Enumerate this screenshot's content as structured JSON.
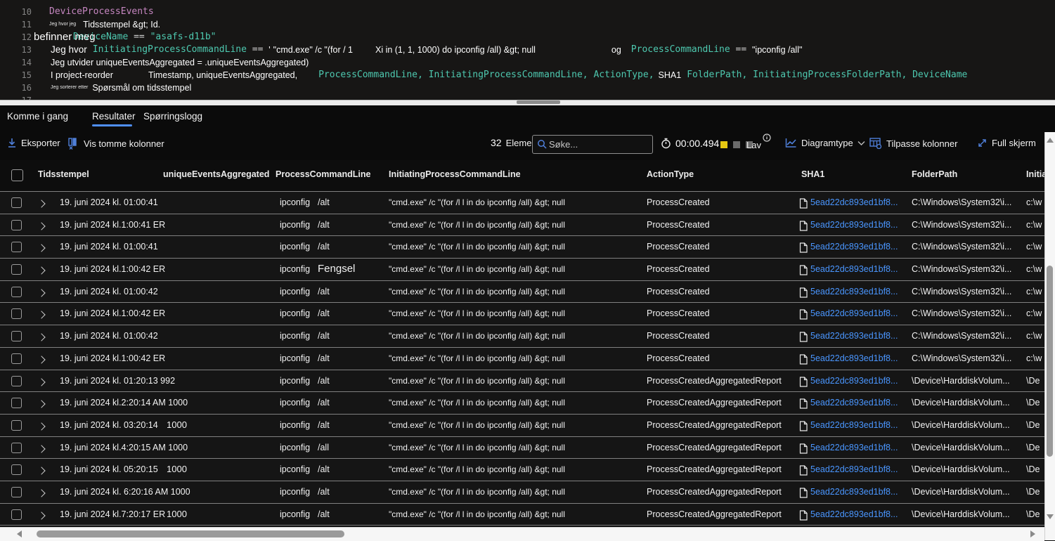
{
  "editor": {
    "overlay_text": "befinner meg",
    "lines": [
      {
        "num": "10",
        "tokens": [
          {
            "text": "DeviceProcessEvents",
            "cls": "purple",
            "ml": 25
          }
        ]
      },
      {
        "num": "11",
        "tokens": [
          {
            "text": "Jeg hvor jeg",
            "cls": "wxs",
            "ml": 25
          },
          {
            "text": "Tidsstempel &gt; Id.",
            "cls": "wsm",
            "ml": 10
          }
        ]
      },
      {
        "num": "12",
        "tokens": [
          {
            "text": "DeviceName",
            "cls": "teal",
            "ml": 59
          },
          {
            "text": " == ",
            "cls": "op"
          },
          {
            "text": "\"asafs-d11b\"",
            "cls": "teal"
          }
        ]
      },
      {
        "num": "13",
        "tokens": [
          {
            "text": "Jeg hvor",
            "cls": "wmd",
            "ml": 27
          },
          {
            "text": "InitiatingProcessCommandLine",
            "cls": "teal",
            "ml": 8
          },
          {
            "text": " == ",
            "cls": "op"
          },
          {
            "text": "'",
            "cls": "wsm"
          },
          {
            "text": "\"cmd.exe\" /c \"(for / 1",
            "cls": "wsm",
            "ml": 4
          },
          {
            "text": "Xi in (1, 1, 1000) do ipconfig /all) &gt; null",
            "cls": "wsm",
            "ml": 32
          },
          {
            "text": "og",
            "cls": "wsm",
            "ml": 108
          },
          {
            "text": "ProcessCommandLine",
            "cls": "teal",
            "ml": 14
          },
          {
            "text": " == ",
            "cls": "op"
          },
          {
            "text": "\"ipconfig /all\"",
            "cls": "wsm"
          }
        ]
      },
      {
        "num": "14",
        "tokens": [
          {
            "text": "Jeg utvider uniqueEventsAggregated = .uniqueEventsAggregated)",
            "cls": "wsm",
            "ml": 27
          }
        ]
      },
      {
        "num": "15",
        "tokens": [
          {
            "text": "I project-reorder",
            "cls": "wsm",
            "ml": 27
          },
          {
            "text": "Timestamp, uniqueEventsAggregated,",
            "cls": "wsm",
            "ml": 50
          },
          {
            "text": "ProcessCommandLine, InitiatingProcessCommandLine, ActionType,",
            "cls": "teal",
            "ml": 30
          },
          {
            "text": "SHA1",
            "cls": "wsm",
            "ml": 6
          },
          {
            "text": "FolderPath, InitiatingProcessFolderPath, DeviceName",
            "cls": "teal",
            "ml": 8
          }
        ]
      },
      {
        "num": "16",
        "tokens": [
          {
            "text": "Jeg sorterer etter",
            "cls": "wxs",
            "ml": 27
          },
          {
            "text": "Spørsmål om tidsstempel",
            "cls": "wsm",
            "ml": 6
          }
        ]
      },
      {
        "num": "17",
        "tokens": []
      }
    ]
  },
  "tabs": [
    {
      "label": "Komme i gang",
      "active": false
    },
    {
      "label": "Resultater",
      "active": true
    },
    {
      "label": "Spørringslogg",
      "active": false
    }
  ],
  "toolbar": {
    "export_label": "Eksporter",
    "show_empty_label": "Vis tomme kolonner",
    "count": "32",
    "count_label": "Elementer",
    "search_placeholder": "Søke...",
    "timer": "00:00.494",
    "load_level": "Lav",
    "chart_type_label": "Diagramtype",
    "customize_label": "Tilpasse kolonner",
    "fullscreen_label": "Full skjerm"
  },
  "table": {
    "columns": [
      "Tidsstempel",
      "uniqueEventsAggregated",
      "ProcessCommandLine",
      "InitiatingProcessCommandLine",
      "ActionType",
      "SHA1",
      "FolderPath",
      "InitiatingProcessFolderPath"
    ],
    "pcl_exe": "ipconfig",
    "ipcl": "\"cmd.exe\" /c \"(for /l l in do ipconfig /all) &gt; null",
    "sha1_link": "5ead22dc893ed1bf8...",
    "rows": [
      {
        "ts": "19. juni 2024 kl. 01:00:41",
        "unique": "",
        "uinline": false,
        "pcl2": "/alt",
        "action": "ProcessCreated",
        "folder": "C:\\Windows\\System32\\i...",
        "last": "c:\\w"
      },
      {
        "ts": "19. juni 2024 kl.1:00:41 ER",
        "unique": "",
        "uinline": false,
        "pcl2": "/alt",
        "action": "ProcessCreated",
        "folder": "C:\\Windows\\System32\\i...",
        "last": "c:\\w"
      },
      {
        "ts": "19. juni 2024 kl. 01:00:41",
        "unique": "",
        "uinline": false,
        "pcl2": "/alt",
        "action": "ProcessCreated",
        "folder": "C:\\Windows\\System32\\i...",
        "last": "c:\\w"
      },
      {
        "ts": "19. juni 2024 kl.1:00:42 ER",
        "unique": "",
        "uinline": false,
        "pcl2": "Fengsel",
        "action": "ProcessCreated",
        "folder": "C:\\Windows\\System32\\i...",
        "last": "c:\\w"
      },
      {
        "ts": "19. juni 2024 kl. 01:00:42",
        "unique": "",
        "uinline": false,
        "pcl2": "/alt",
        "action": "ProcessCreated",
        "folder": "C:\\Windows\\System32\\i...",
        "last": "c:\\w"
      },
      {
        "ts": "19. juni 2024 kl.1:00:42 ER",
        "unique": "",
        "uinline": false,
        "pcl2": "/alt",
        "action": "ProcessCreated",
        "folder": "C:\\Windows\\System32\\i...",
        "last": "c:\\w"
      },
      {
        "ts": "19. juni 2024 kl. 01:00:42",
        "unique": "",
        "uinline": false,
        "pcl2": "/alt",
        "action": "ProcessCreated",
        "folder": "C:\\Windows\\System32\\i...",
        "last": "c:\\w"
      },
      {
        "ts": "19. juni 2024 kl.1:00:42 ER",
        "unique": "",
        "uinline": false,
        "pcl2": "/alt",
        "action": "ProcessCreated",
        "folder": "C:\\Windows\\System32\\i...",
        "last": "c:\\w"
      },
      {
        "ts": "19. juni 2024 kl. 01:20:13",
        "unique": "992",
        "uinline": true,
        "pcl2": "/alt",
        "action": "ProcessCreatedAggregatedReport",
        "folder": "\\Device\\HarddiskVolum...",
        "last": "\\De"
      },
      {
        "ts": "19. juni 2024 kl.2:20:14 AM",
        "unique": "1000",
        "uinline": true,
        "pcl2": "/alt",
        "action": "ProcessCreatedAggregatedReport",
        "folder": "\\Device\\HarddiskVolum...",
        "last": "\\De"
      },
      {
        "ts": "19. juni 2024 kl. 03:20:14",
        "unique": "1000",
        "uinline": false,
        "pcl2": "/alt",
        "action": "ProcessCreatedAggregatedReport",
        "folder": "\\Device\\HarddiskVolum...",
        "last": "\\De"
      },
      {
        "ts": "19. juni 2024 kl.4:20:15 AM",
        "unique": "1000",
        "uinline": true,
        "pcl2": "/all",
        "action": "ProcessCreatedAggregatedReport",
        "folder": "\\Device\\HarddiskVolum...",
        "last": "\\De"
      },
      {
        "ts": "19. juni 2024 kl. 05:20:15",
        "unique": "1000",
        "uinline": false,
        "pcl2": "/alt",
        "action": "ProcessCreatedAggregatedReport",
        "folder": "\\Device\\HarddiskVolum...",
        "last": "\\De"
      },
      {
        "ts": "19. juni 2024 kl. 6:20:16 AM",
        "unique": "1000",
        "uinline": true,
        "pcl2": "/alt",
        "action": "ProcessCreatedAggregatedReport",
        "folder": "\\Device\\HarddiskVolum...",
        "last": "\\De"
      },
      {
        "ts": "19. juni 2024 kl.7:20:17 ER",
        "unique": "1000",
        "uinline": false,
        "pcl2": "/alt",
        "action": "ProcessCreatedAggregatedReport",
        "folder": "\\Device\\HarddiskVolum...",
        "last": "\\De"
      }
    ]
  },
  "colors": {
    "accent_blue": "#4f8ff7",
    "icon_blue": "#4f7fd9",
    "link_blue": "#4a96ff",
    "code_teal": "#4ec9b0",
    "code_purple": "#c586c0",
    "perf_yellow": "#e5c712"
  }
}
